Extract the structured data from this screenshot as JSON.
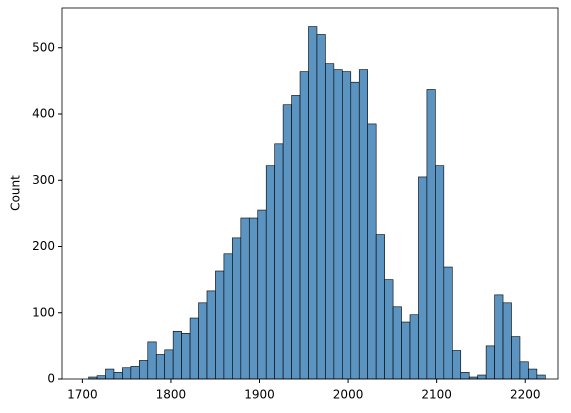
{
  "chart_data": {
    "type": "histogram",
    "ylabel": "Count",
    "bins": [
      1707.0,
      1716.55,
      1726.1,
      1735.65,
      1745.2,
      1754.75,
      1764.3,
      1773.85,
      1783.4,
      1792.95,
      1802.5,
      1812.05,
      1821.6,
      1831.15,
      1840.7,
      1850.25,
      1859.8,
      1869.35,
      1878.9,
      1888.45,
      1898.0,
      1907.55,
      1917.1,
      1926.65,
      1936.2,
      1945.75,
      1955.3,
      1964.85,
      1974.4,
      1983.95,
      1993.5,
      2003.05,
      2012.6,
      2022.15,
      2031.7,
      2041.25,
      2050.8,
      2060.35,
      2069.9,
      2079.45,
      2089.0,
      2098.55,
      2108.1,
      2117.65,
      2127.2,
      2136.75,
      2146.3,
      2155.85,
      2165.4,
      2174.95,
      2184.5,
      2194.05,
      2203.6,
      2213.15,
      2222.7
    ],
    "values": [
      3,
      5,
      15,
      10,
      17,
      19,
      28,
      56,
      37,
      44,
      72,
      69,
      92,
      115,
      133,
      163,
      189,
      213,
      243,
      243,
      255,
      322,
      355,
      414,
      428,
      464,
      532,
      520,
      476,
      467,
      464,
      448,
      467,
      385,
      218,
      150,
      109,
      86,
      97,
      305,
      437,
      322,
      169,
      43,
      10,
      3,
      6,
      50,
      127,
      115,
      64,
      26,
      15,
      6
    ],
    "color": "#5b93c1",
    "xlim": [
      1677,
      2237
    ],
    "xticks": [
      1700,
      1800,
      1900,
      2000,
      2100,
      2200
    ],
    "ylim": [
      0,
      560
    ],
    "yticks": [
      0,
      100,
      200,
      300,
      400,
      500
    ]
  }
}
